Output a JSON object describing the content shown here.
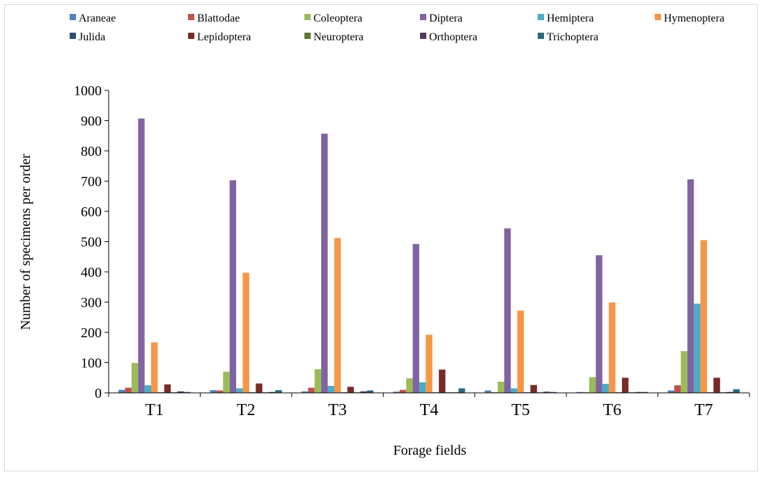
{
  "chart_data": {
    "type": "bar",
    "title": "",
    "xlabel": "Forage fields",
    "ylabel": "Number of specimens per order",
    "ylim": [
      0,
      1000
    ],
    "yticks": [
      0,
      100,
      200,
      300,
      400,
      500,
      600,
      700,
      800,
      900,
      1000
    ],
    "categories": [
      "T1",
      "T2",
      "T3",
      "T4",
      "T5",
      "T6",
      "T7"
    ],
    "legend_position": "top",
    "grid": false,
    "series": [
      {
        "name": "Araneae",
        "color": "#4f81bd",
        "values": [
          10,
          9,
          5,
          4,
          8,
          3,
          8
        ]
      },
      {
        "name": "Blattodae",
        "color": "#c0504d",
        "values": [
          17,
          8,
          17,
          10,
          2,
          2,
          25
        ]
      },
      {
        "name": "Coleoptera",
        "color": "#9bbb59",
        "values": [
          99,
          70,
          78,
          48,
          37,
          52,
          138
        ]
      },
      {
        "name": "Diptera",
        "color": "#8064a2",
        "values": [
          907,
          703,
          857,
          492,
          544,
          455,
          706
        ]
      },
      {
        "name": "Hemiptera",
        "color": "#4bacc6",
        "values": [
          25,
          15,
          23,
          35,
          15,
          30,
          295
        ]
      },
      {
        "name": "Hymenoptera",
        "color": "#f79646",
        "values": [
          167,
          397,
          512,
          192,
          272,
          299,
          505
        ]
      },
      {
        "name": "Julida",
        "color": "#2c4d75",
        "values": [
          2,
          2,
          2,
          2,
          2,
          2,
          2
        ]
      },
      {
        "name": "Lepidoptera",
        "color": "#772c2a",
        "values": [
          28,
          31,
          20,
          77,
          26,
          50,
          50
        ]
      },
      {
        "name": "Neuroptera",
        "color": "#5f7530",
        "values": [
          2,
          2,
          2,
          2,
          2,
          2,
          2
        ]
      },
      {
        "name": "Orthoptera",
        "color": "#4d3b62",
        "values": [
          5,
          3,
          5,
          2,
          4,
          3,
          3
        ]
      },
      {
        "name": "Trichoptera",
        "color": "#276a7c",
        "values": [
          3,
          9,
          8,
          15,
          3,
          3,
          12
        ]
      }
    ]
  }
}
